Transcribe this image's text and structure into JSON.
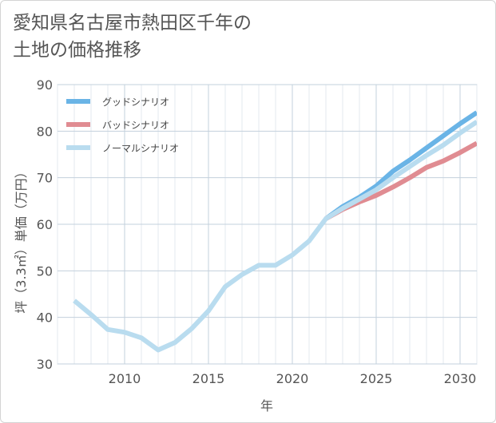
{
  "title": "愛知県名古屋市熱田区千年の土地の価格推移",
  "chart_data": {
    "type": "line",
    "title": "愛知県名古屋市熱田区千年の土地の価格推移",
    "xlabel": "年",
    "ylabel": "坪（3.3㎡）単価（万円）",
    "xlim": [
      2006,
      2031
    ],
    "ylim": [
      30,
      90
    ],
    "xticks": [
      2010,
      2015,
      2020,
      2025,
      2030
    ],
    "yticks": [
      30,
      40,
      50,
      60,
      70,
      80,
      90
    ],
    "grid": true,
    "legend_position": "top-left",
    "series": [
      {
        "name": "グッドシナリオ",
        "color": "#6ab4e6",
        "x": [
          2022,
          2023,
          2024,
          2025,
          2026,
          2027,
          2028,
          2029,
          2030,
          2031
        ],
        "values": [
          61.2,
          63.8,
          65.8,
          68.2,
          71.4,
          73.8,
          76.4,
          79.0,
          81.6,
          84.0
        ]
      },
      {
        "name": "バッドシナリオ",
        "color": "#e08c92",
        "x": [
          2022,
          2023,
          2024,
          2025,
          2026,
          2027,
          2028,
          2029,
          2030,
          2031
        ],
        "values": [
          61.2,
          63.2,
          64.8,
          66.2,
          68.0,
          70.0,
          72.2,
          73.6,
          75.4,
          77.4
        ]
      },
      {
        "name": "ノーマルシナリオ",
        "color": "#b9dcef",
        "x": [
          2007,
          2008,
          2009,
          2010,
          2011,
          2012,
          2013,
          2014,
          2015,
          2016,
          2017,
          2018,
          2019,
          2020,
          2021,
          2022,
          2023,
          2024,
          2025,
          2026,
          2027,
          2028,
          2029,
          2030,
          2031
        ],
        "values": [
          43.6,
          40.6,
          37.4,
          36.8,
          35.6,
          33.0,
          34.6,
          37.6,
          41.4,
          46.6,
          49.2,
          51.2,
          51.2,
          53.4,
          56.4,
          61.2,
          63.4,
          65.4,
          67.4,
          70.0,
          72.4,
          74.8,
          77.0,
          79.6,
          82.0
        ]
      }
    ]
  }
}
